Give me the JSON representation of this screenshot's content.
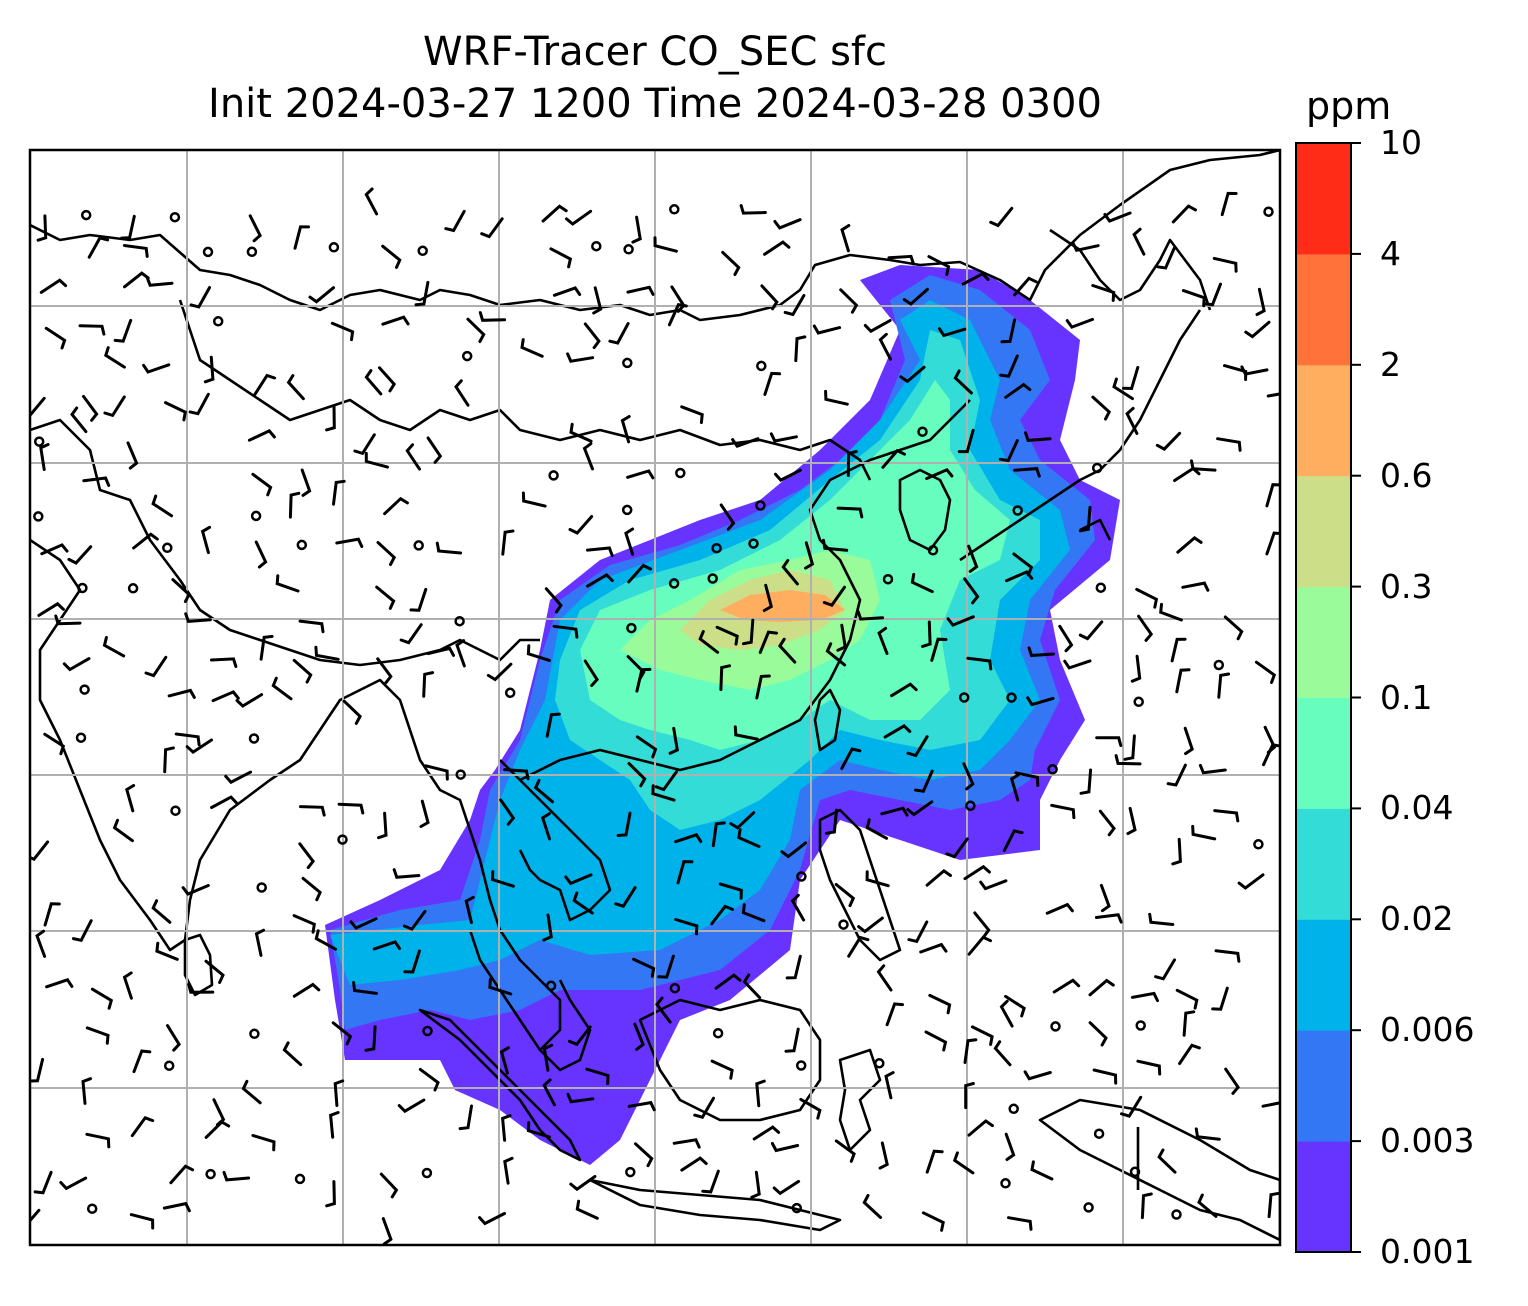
{
  "title": {
    "line1": "WRF-Tracer CO_SEC sfc",
    "line2": "Init 2024-03-27 1200 Time 2024-03-28 0300"
  },
  "colorbar": {
    "units": "ppm",
    "levels": [
      "0.001",
      "0.003",
      "0.006",
      "0.02",
      "0.04",
      "0.1",
      "0.3",
      "0.6",
      "2",
      "4",
      "10"
    ],
    "colors": [
      "#6633ff",
      "#3377f5",
      "#00b2ea",
      "#33dcd6",
      "#66fdbf",
      "#99fb99",
      "#ccdf88",
      "#ffad5f",
      "#ff7239",
      "#ff2c18"
    ]
  },
  "map": {
    "gridlines": true,
    "features": [
      "coastlines",
      "country-borders",
      "wind-barbs",
      "calm-wind-circles"
    ]
  }
}
